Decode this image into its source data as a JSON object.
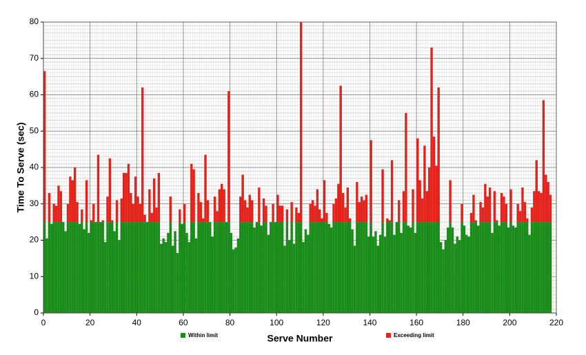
{
  "chart_data": {
    "type": "stacked_bar",
    "x_label": "Serve Number",
    "y_label": "Time To Serve (sec)",
    "x": [
      0,
      1,
      2,
      3,
      4,
      5,
      6,
      7,
      8,
      9,
      10,
      11,
      12,
      13,
      14,
      15,
      16,
      17,
      18,
      19,
      20,
      21,
      22,
      23,
      24,
      25,
      26,
      27,
      28,
      29,
      30,
      31,
      32,
      33,
      34,
      35,
      36,
      37,
      38,
      39,
      40,
      41,
      42,
      43,
      44,
      45,
      46,
      47,
      48,
      49,
      50,
      51,
      52,
      53,
      54,
      55,
      56,
      57,
      58,
      59,
      60,
      61,
      62,
      63,
      64,
      65,
      66,
      67,
      68,
      69,
      70,
      71,
      72,
      73,
      74,
      75,
      76,
      77,
      78,
      79,
      80,
      81,
      82,
      83,
      84,
      85,
      86,
      87,
      88,
      89,
      90,
      91,
      92,
      93,
      94,
      95,
      96,
      97,
      98,
      99,
      100,
      101,
      102,
      103,
      104,
      105,
      106,
      107,
      108,
      109,
      110,
      111,
      112,
      113,
      114,
      115,
      116,
      117,
      118,
      119,
      120,
      121,
      122,
      123,
      124,
      125,
      126,
      127,
      128,
      129,
      130,
      131,
      132,
      133,
      134,
      135,
      136,
      137,
      138,
      139,
      140,
      141,
      142,
      143,
      144,
      145,
      146,
      147,
      148,
      149,
      150,
      151,
      152,
      153,
      154,
      155,
      156,
      157,
      158,
      159,
      160,
      161,
      162,
      163,
      164,
      165,
      166,
      167,
      168,
      169,
      170,
      171,
      172,
      173,
      174,
      175,
      176,
      177,
      178,
      179,
      180,
      181,
      182,
      183,
      184,
      185,
      186,
      187,
      188,
      189,
      190,
      191,
      192,
      193,
      194,
      195,
      196,
      197,
      198,
      199,
      200,
      201,
      202,
      203,
      204,
      205,
      206,
      207,
      208,
      209,
      210,
      211,
      212,
      213,
      214,
      215,
      216,
      217
    ],
    "series": [
      {
        "name": "Within limit",
        "color": "#1a8c1a",
        "values": [
          25,
          20.5,
          25,
          24.5,
          25,
          25,
          25,
          25,
          25,
          22.5,
          25,
          25,
          25,
          25,
          25,
          24.5,
          25,
          23,
          25,
          22,
          25,
          25,
          25,
          25,
          25,
          25,
          19.5,
          25,
          25,
          25,
          22.5,
          25,
          20,
          25,
          25,
          25,
          25,
          25,
          25,
          25,
          25,
          25,
          25,
          25,
          25,
          25,
          25,
          25,
          25,
          25,
          19,
          20.5,
          19.5,
          22,
          25,
          18.5,
          22.5,
          16.5,
          25,
          24.5,
          25,
          22,
          19.5,
          25,
          25,
          20.5,
          25,
          25,
          25,
          25,
          25,
          25,
          21,
          25,
          25,
          25,
          25,
          25,
          25,
          25,
          22,
          17.5,
          18,
          20.5,
          25,
          25,
          25,
          25,
          25,
          25,
          23.5,
          25,
          25,
          24,
          25,
          25,
          21.5,
          25,
          25,
          25,
          25,
          25,
          25,
          18.5,
          25,
          20,
          25,
          19,
          25,
          25,
          25,
          19.5,
          23,
          21.5,
          25,
          25,
          25,
          25,
          25,
          25,
          25,
          25,
          24.5,
          23.5,
          25,
          25,
          25,
          25,
          25,
          25,
          25,
          25,
          23,
          18.5,
          25,
          25,
          25,
          25,
          25,
          21,
          25,
          21,
          22.5,
          18.5,
          21.5,
          25,
          21,
          25,
          25,
          25,
          21.5,
          25,
          25,
          22,
          25,
          25,
          24,
          23.5,
          25,
          22,
          25,
          25,
          25,
          25,
          25,
          25,
          25,
          25,
          25,
          25,
          19.5,
          17.5,
          20,
          23.5,
          25,
          23.5,
          19,
          21,
          20,
          25,
          24,
          21.5,
          21,
          25,
          25,
          25,
          24,
          25,
          25,
          25,
          25,
          25,
          22,
          25,
          25,
          24,
          25,
          25,
          25,
          23.5,
          25,
          24,
          23.5,
          25,
          25,
          25,
          25,
          25,
          21.5,
          25,
          25,
          25,
          25,
          25,
          25,
          25,
          25,
          25
        ]
      },
      {
        "name": "Exceeding limit",
        "color": "#e3231c",
        "values": [
          41.5,
          null,
          8,
          null,
          5,
          4.5,
          10,
          8.5,
          null,
          null,
          5,
          12.5,
          11.5,
          15,
          5.5,
          null,
          3.5,
          null,
          11.5,
          null,
          0.5,
          5,
          null,
          18.5,
          null,
          0.5,
          null,
          7,
          17.5,
          0.5,
          null,
          6,
          null,
          6.5,
          13.5,
          13.5,
          16,
          8,
          5,
          12.5,
          7,
          5,
          37,
          2,
          null,
          9,
          2.5,
          12,
          4,
          13.5,
          null,
          null,
          null,
          null,
          7,
          null,
          null,
          null,
          3.5,
          null,
          5,
          null,
          null,
          16,
          14.5,
          null,
          8,
          5.5,
          1,
          18.5,
          6,
          null,
          null,
          7,
          3,
          9,
          10.5,
          9,
          null,
          36,
          null,
          null,
          null,
          null,
          7,
          13,
          6,
          4,
          7.5,
          6,
          null,
          null,
          9.5,
          null,
          6.5,
          4.5,
          null,
          null,
          5,
          null,
          7.5,
          4.5,
          4.5,
          null,
          3.5,
          null,
          5.5,
          null,
          4,
          2.5,
          55,
          null,
          null,
          null,
          5,
          6,
          4.5,
          9,
          3.5,
          1,
          11.5,
          2.5,
          null,
          null,
          5,
          6.5,
          10.5,
          37.5,
          8,
          4,
          9.5,
          1,
          null,
          null,
          11,
          5.5,
          7,
          6,
          7.5,
          null,
          22.5,
          null,
          null,
          null,
          null,
          14.5,
          null,
          1,
          0.5,
          17,
          null,
          null,
          6,
          null,
          8.5,
          30,
          null,
          null,
          9,
          null,
          23,
          11.5,
          6.5,
          21,
          8.5,
          15,
          48,
          23.5,
          15.5,
          37,
          null,
          null,
          null,
          null,
          11.5,
          null,
          null,
          null,
          null,
          5,
          null,
          null,
          null,
          2.5,
          7.5,
          0.5,
          null,
          5.5,
          4,
          10.5,
          7,
          9.5,
          null,
          8.5,
          0.5,
          null,
          8,
          7,
          5,
          null,
          9,
          null,
          null,
          5,
          3,
          9.5,
          5.5,
          1,
          null,
          4,
          8.5,
          17,
          8.5,
          8,
          33.5,
          13,
          11,
          7.5
        ]
      }
    ],
    "xlim": [
      0,
      220
    ],
    "xticks": [
      0,
      20,
      40,
      60,
      80,
      100,
      120,
      140,
      160,
      180,
      200,
      220
    ],
    "ylim": [
      0,
      80
    ],
    "yticks": [
      0,
      10,
      20,
      30,
      40,
      50,
      60,
      70,
      80
    ],
    "grid": true,
    "legend": "bottom"
  }
}
